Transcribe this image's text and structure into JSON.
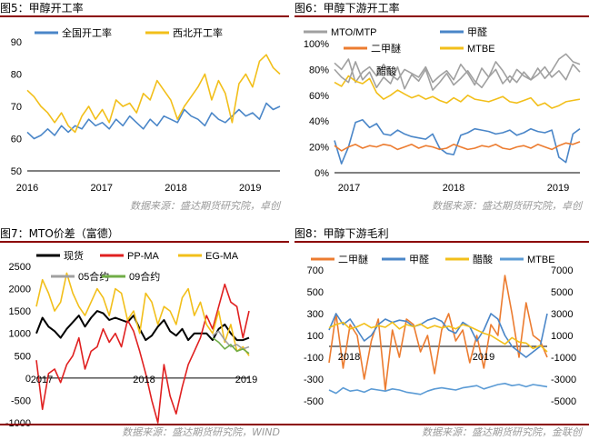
{
  "colors": {
    "blue": "#4a86c8",
    "gold": "#f2bf1a",
    "gray": "#a0a0a0",
    "orange": "#ec7c30",
    "black": "#000000",
    "red": "#e02020",
    "green": "#70ad47",
    "lightblue": "#5b9bd5",
    "rule": "#8b0000"
  },
  "sources": {
    "top_left": "数据来源：盛达期货研究院，卓创",
    "top_right": "数据来源：盛达期货研究院，卓创",
    "bottom_left": "数据来源：盛达期货研究院，WIND",
    "bottom_right": "数据来源：盛达期货研究院，金联创"
  },
  "chart_data": [
    {
      "id": "fig5",
      "title": "图5：甲醇开工率",
      "type": "line",
      "x_ticks": [
        "2016",
        "2017",
        "2018",
        "2019"
      ],
      "ylim": [
        50,
        90
      ],
      "y_ticks": [
        "50",
        "60",
        "70",
        "80",
        "90"
      ],
      "legend": "top",
      "series": [
        {
          "name": "全国开工率",
          "color": "blue",
          "values": [
            62,
            60,
            61,
            63,
            61,
            64,
            62,
            64,
            63,
            66,
            64,
            65,
            63,
            66,
            64,
            67,
            65,
            63,
            66,
            64,
            67,
            66,
            65,
            69,
            67,
            66,
            64,
            68,
            66,
            65,
            67,
            69,
            67,
            68,
            66,
            71,
            69,
            70
          ]
        },
        {
          "name": "西北开工率",
          "color": "gold",
          "values": [
            75,
            73,
            70,
            68,
            65,
            68,
            64,
            62,
            67,
            70,
            66,
            69,
            65,
            72,
            70,
            71,
            68,
            74,
            72,
            78,
            75,
            72,
            66,
            70,
            73,
            76,
            80,
            72,
            78,
            74,
            65,
            77,
            80,
            76,
            84,
            86,
            82,
            80
          ]
        }
      ]
    },
    {
      "id": "fig6",
      "title": "图6：甲醇下游开工率",
      "type": "line",
      "x_ticks": [
        "2017",
        "2018",
        "2019"
      ],
      "ylim": [
        0,
        100
      ],
      "y_ticks": [
        "0%",
        "20%",
        "40%",
        "60%",
        "80%",
        "100%"
      ],
      "legend": "top",
      "series": [
        {
          "name": "MTO/MTP",
          "color": "gray",
          "values": [
            85,
            80,
            88,
            70,
            78,
            82,
            75,
            84,
            76,
            72,
            80,
            77,
            74,
            82,
            70,
            75,
            79,
            72,
            84,
            77,
            68,
            81,
            74,
            86,
            79,
            70,
            80,
            75,
            72,
            76,
            82,
            74,
            79,
            72,
            84,
            78
          ]
        },
        {
          "name": "甲醛",
          "color": "blue",
          "values": [
            25,
            7,
            20,
            39,
            41,
            35,
            38,
            30,
            29,
            33,
            30,
            28,
            27,
            26,
            30,
            19,
            15,
            14,
            29,
            31,
            34,
            33,
            32,
            30,
            31,
            33,
            29,
            31,
            34,
            32,
            31,
            33,
            12,
            8,
            30,
            34
          ]
        },
        {
          "name": "二甲醚",
          "color": "orange",
          "values": [
            21,
            17,
            20,
            22,
            19,
            21,
            20,
            22,
            21,
            18,
            20,
            22,
            19,
            21,
            20,
            18,
            19,
            22,
            20,
            18,
            19,
            21,
            20,
            22,
            19,
            18,
            20,
            21,
            19,
            22,
            20,
            18,
            21,
            23,
            22,
            24
          ]
        },
        {
          "name": "MTBE",
          "color": "gold",
          "values": [
            70,
            67,
            75,
            71,
            69,
            73,
            62,
            57,
            60,
            64,
            61,
            58,
            60,
            57,
            59,
            56,
            54,
            58,
            55,
            60,
            57,
            56,
            55,
            57,
            59,
            55,
            54,
            56,
            58,
            52,
            54,
            50,
            52,
            55,
            56,
            57
          ]
        },
        {
          "name": "醋酸",
          "color": "gray",
          "values": [
            80,
            74,
            70,
            86,
            72,
            78,
            66,
            74,
            69,
            82,
            65,
            76,
            71,
            80,
            64,
            70,
            77,
            68,
            73,
            79,
            71,
            66,
            74,
            80,
            69,
            75,
            70,
            78,
            72,
            81,
            73,
            79,
            88,
            92,
            86,
            84
          ]
        }
      ]
    },
    {
      "id": "fig7",
      "title": "图7：MTO价差（富德）",
      "type": "line",
      "x_ticks": [
        "2017",
        "2018",
        "2019"
      ],
      "ylim": [
        -1000,
        2500
      ],
      "y_ticks": [
        "-1000",
        "-500",
        "0",
        "500",
        "1000",
        "1500",
        "2000",
        "2500"
      ],
      "legend": "top",
      "series": [
        {
          "name": "现货",
          "color": "black",
          "values": [
            1000,
            1350,
            1150,
            1050,
            900,
            1100,
            1250,
            1400,
            1150,
            1350,
            1500,
            1450,
            1300,
            1350,
            1300,
            1250,
            1400,
            1100,
            850,
            950,
            1150,
            1300,
            1050,
            950,
            1100,
            850,
            1000,
            1000,
            1000,
            850,
            1100,
            1200,
            1000,
            850,
            850,
            900
          ]
        },
        {
          "name": "PP-MA",
          "color": "red",
          "values": [
            400,
            -700,
            100,
            200,
            -100,
            300,
            500,
            900,
            200,
            600,
            700,
            1100,
            800,
            1000,
            700,
            1300,
            1050,
            600,
            100,
            -500,
            -1000,
            300,
            -400,
            -800,
            -200,
            300,
            600,
            900,
            1400,
            1100,
            1600,
            2100,
            1700,
            1600,
            900,
            1500
          ]
        },
        {
          "name": "EG-MA",
          "color": "gold",
          "values": [
            1600,
            2200,
            1900,
            1500,
            1700,
            2350,
            1900,
            1600,
            1400,
            1700,
            2000,
            1800,
            1400,
            2000,
            1900,
            1300,
            1500,
            1000,
            1900,
            1700,
            1200,
            1600,
            1500,
            1200,
            1800,
            2000,
            1400,
            1700,
            1200,
            1000,
            1500,
            800,
            1200,
            600,
            700,
            500
          ]
        },
        {
          "name": "05合约",
          "color": "gray",
          "values": [
            null,
            null,
            null,
            null,
            null,
            null,
            null,
            null,
            null,
            null,
            null,
            null,
            null,
            null,
            null,
            null,
            null,
            null,
            null,
            null,
            null,
            null,
            null,
            null,
            null,
            null,
            null,
            null,
            null,
            950,
            1050,
            850,
            700,
            750,
            650,
            700
          ]
        },
        {
          "name": "09合约",
          "color": "green",
          "values": [
            null,
            null,
            null,
            null,
            null,
            null,
            null,
            null,
            null,
            null,
            null,
            null,
            null,
            null,
            null,
            null,
            null,
            null,
            null,
            null,
            null,
            null,
            null,
            null,
            null,
            null,
            null,
            null,
            null,
            900,
            800,
            650,
            750,
            600,
            650,
            550
          ]
        }
      ]
    },
    {
      "id": "fig8",
      "title": "图8：甲醇下游毛利",
      "type": "line",
      "x_ticks": [
        "2018",
        "2019"
      ],
      "ylim_left": [
        -500,
        700
      ],
      "y_ticks_left": [
        "-500",
        "-300",
        "-100",
        "100",
        "300",
        "500",
        "700"
      ],
      "ylim_right": [
        -5000,
        7000
      ],
      "y_ticks_right": [
        "-5000",
        "-3000",
        "-1000",
        "1000",
        "3000",
        "5000",
        "7000"
      ],
      "legend": "top",
      "series": [
        {
          "name": "二甲醚",
          "color": "orange",
          "axis": "left",
          "values": [
            -150,
            300,
            -200,
            200,
            100,
            -300,
            50,
            250,
            -400,
            150,
            -100,
            250,
            200,
            -50,
            100,
            -250,
            150,
            300,
            50,
            150,
            -150,
            100,
            -200,
            200,
            100,
            650,
            300,
            -100,
            400,
            100,
            50,
            -100
          ]
        },
        {
          "name": "甲醛",
          "color": "blue",
          "axis": "left",
          "values": [
            150,
            300,
            200,
            250,
            150,
            50,
            100,
            200,
            250,
            220,
            240,
            230,
            180,
            200,
            240,
            260,
            230,
            150,
            120,
            220,
            180,
            50,
            150,
            300,
            250,
            100,
            0,
            -50,
            -100,
            -50,
            0,
            300
          ]
        },
        {
          "name": "醋酸",
          "color": "gold",
          "axis": "right",
          "values": [
            1700,
            2000,
            2200,
            1600,
            1800,
            2100,
            1700,
            1900,
            1750,
            2200,
            1600,
            2000,
            1800,
            2050,
            1650,
            1900,
            1700,
            1850,
            1600,
            2000,
            1800,
            1500,
            1200,
            1000,
            600,
            200,
            800,
            400,
            300,
            -200,
            100,
            -500
          ]
        },
        {
          "name": "MTBE",
          "color": "lightblue",
          "axis": "right",
          "values": [
            -4000,
            -4300,
            -3800,
            -4100,
            -4000,
            -4200,
            -3900,
            -4000,
            -4100,
            -3900,
            -4000,
            -4200,
            -4300,
            -4400,
            -4100,
            -3900,
            -3800,
            -3900,
            -4000,
            -3800,
            -3700,
            -3600,
            -3900,
            -3700,
            -3500,
            -3400,
            -3600,
            -3500,
            -3700,
            -3500,
            -3600,
            -3700
          ]
        }
      ]
    }
  ]
}
